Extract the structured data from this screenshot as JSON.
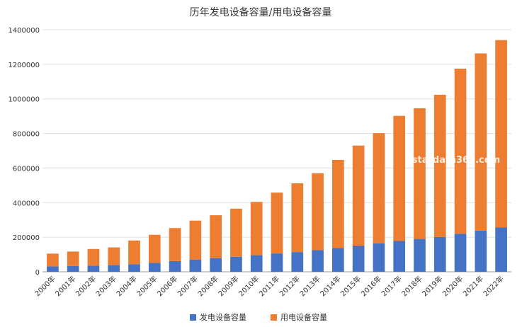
{
  "chart_data": {
    "type": "bar",
    "stacked": true,
    "title": "历年发电设备容量/用电设备容量",
    "xlabel": "",
    "ylabel": "",
    "ylim": [
      0,
      1400000
    ],
    "yticks": [
      "0",
      "200000",
      "400000",
      "600000",
      "800000",
      "1000000",
      "1200000",
      "1400000"
    ],
    "grid": true,
    "legend_position": "bottom",
    "categories": [
      "2000年",
      "2001年",
      "2002年",
      "2003年",
      "2004年",
      "2005年",
      "2006年",
      "2007年",
      "2008年",
      "2009年",
      "2010年",
      "2011年",
      "2012年",
      "2013年",
      "2014年",
      "2015年",
      "2016年",
      "2017年",
      "2018年",
      "2019年",
      "2020年",
      "2021年",
      "2022年"
    ],
    "series": [
      {
        "name": "发电设备容量",
        "color": "#4472C4",
        "values": [
          31000,
          33000,
          35500,
          38500,
          44000,
          51000,
          62000,
          71000,
          79000,
          87000,
          96000,
          106000,
          114000,
          125000,
          137000,
          152000,
          165000,
          178000,
          190000,
          201000,
          220000,
          238000,
          256000
        ]
      },
      {
        "name": "用电设备容量",
        "color": "#ED7D31",
        "values": [
          74000,
          84000,
          96500,
          102500,
          137000,
          163000,
          191000,
          225000,
          248000,
          278000,
          308000,
          352000,
          398000,
          445000,
          510000,
          578000,
          637000,
          724000,
          756000,
          823000,
          955000,
          1025000,
          1084000
        ]
      }
    ],
    "watermark": "stardata360.com"
  }
}
